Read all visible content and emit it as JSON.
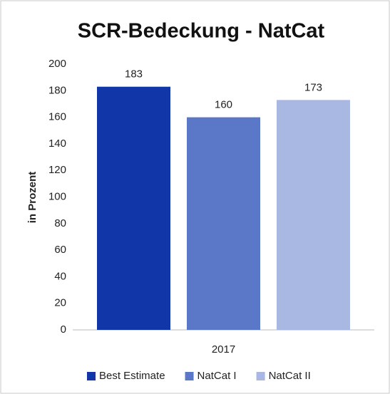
{
  "chart_data": {
    "type": "bar",
    "title": "SCR-Bedeckung - NatCat",
    "y_label": "in Prozent",
    "categories": [
      "2017"
    ],
    "series": [
      {
        "name": "Best Estimate",
        "color": "#1036a8",
        "values": [
          183
        ]
      },
      {
        "name": "NatCat I",
        "color": "#5b78c8",
        "values": [
          160
        ]
      },
      {
        "name": "NatCat II",
        "color": "#a9b7e3",
        "values": [
          173
        ]
      }
    ],
    "ylim": [
      0,
      200
    ],
    "yticks": [
      0,
      20,
      40,
      60,
      80,
      100,
      120,
      140,
      160,
      180,
      200
    ],
    "grid": false,
    "legend": "bottom"
  }
}
